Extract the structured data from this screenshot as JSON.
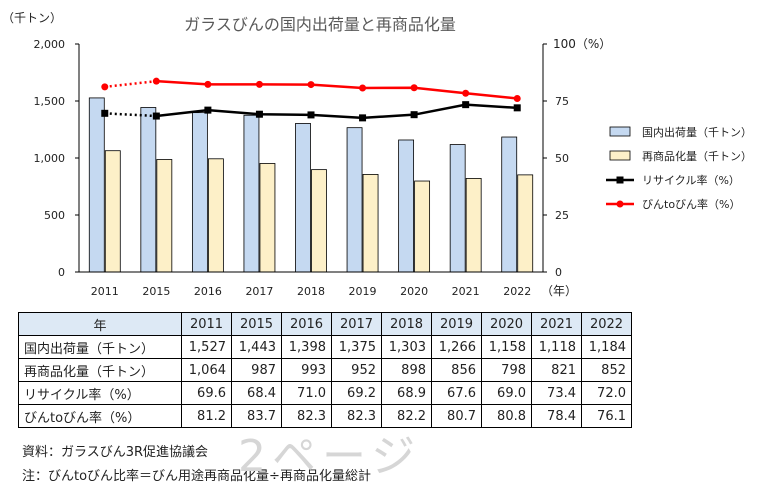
{
  "chart_data": {
    "type": "bar",
    "title": "ガラスびんの国内出荷量と再商品化量",
    "y_left_unit": "（千トン）",
    "y_right_unit": "100（%）",
    "x_unit": "（年）",
    "y_left_range": [
      0,
      2000
    ],
    "y_right_range": [
      0,
      100
    ],
    "y_left_ticks": [
      "0",
      "500",
      "1,000",
      "1,500",
      "2,000"
    ],
    "y_right_ticks": [
      "0",
      "25",
      "50",
      "75"
    ],
    "categories": [
      "2011",
      "2015",
      "2016",
      "2017",
      "2018",
      "2019",
      "2020",
      "2021",
      "2022"
    ],
    "grid": false,
    "legend_position": "right",
    "series": [
      {
        "name": "国内出荷量（千トン）",
        "kind": "bar",
        "axis": "left",
        "color": "#c5d9f1",
        "values": [
          1527,
          1443,
          1398,
          1375,
          1303,
          1266,
          1158,
          1118,
          1184
        ]
      },
      {
        "name": "再商品化量（千トン）",
        "kind": "bar",
        "axis": "left",
        "color": "#fdf0c8",
        "values": [
          1064,
          987,
          993,
          952,
          898,
          856,
          798,
          821,
          852
        ]
      },
      {
        "name": "リサイクル率（%）",
        "kind": "line",
        "axis": "right",
        "color": "#000000",
        "values": [
          69.6,
          68.4,
          71.0,
          69.2,
          68.9,
          67.6,
          69.0,
          73.4,
          72.0
        ]
      },
      {
        "name": "びんtoびん率（%）",
        "kind": "line",
        "axis": "right",
        "color": "#ff0000",
        "values": [
          81.2,
          83.7,
          82.3,
          82.3,
          82.2,
          80.7,
          80.8,
          78.4,
          76.1
        ]
      }
    ]
  },
  "table": {
    "header_label": "年",
    "years": [
      "2011",
      "2015",
      "2016",
      "2017",
      "2018",
      "2019",
      "2020",
      "2021",
      "2022"
    ],
    "rows": [
      {
        "label": "国内出荷量（千トン）",
        "values": [
          "1,527",
          "1,443",
          "1,398",
          "1,375",
          "1,303",
          "1,266",
          "1,158",
          "1,118",
          "1,184"
        ]
      },
      {
        "label": "再商品化量（千トン）",
        "values": [
          "1,064",
          "987",
          "993",
          "952",
          "898",
          "856",
          "798",
          "821",
          "852"
        ]
      },
      {
        "label": "リサイクル率（%）",
        "values": [
          "69.6",
          "68.4",
          "71.0",
          "69.2",
          "68.9",
          "67.6",
          "69.0",
          "73.4",
          "72.0"
        ]
      },
      {
        "label": "びんtoびん率（%）",
        "values": [
          "81.2",
          "83.7",
          "82.3",
          "82.3",
          "82.2",
          "80.7",
          "80.8",
          "78.4",
          "76.1"
        ]
      }
    ]
  },
  "notes": {
    "source": "資料：ガラスびん3R促進協議会",
    "footnote": "注：びんtoびん比率＝びん用途再商品化量÷再商品化量総計"
  },
  "watermark": "2ページ"
}
